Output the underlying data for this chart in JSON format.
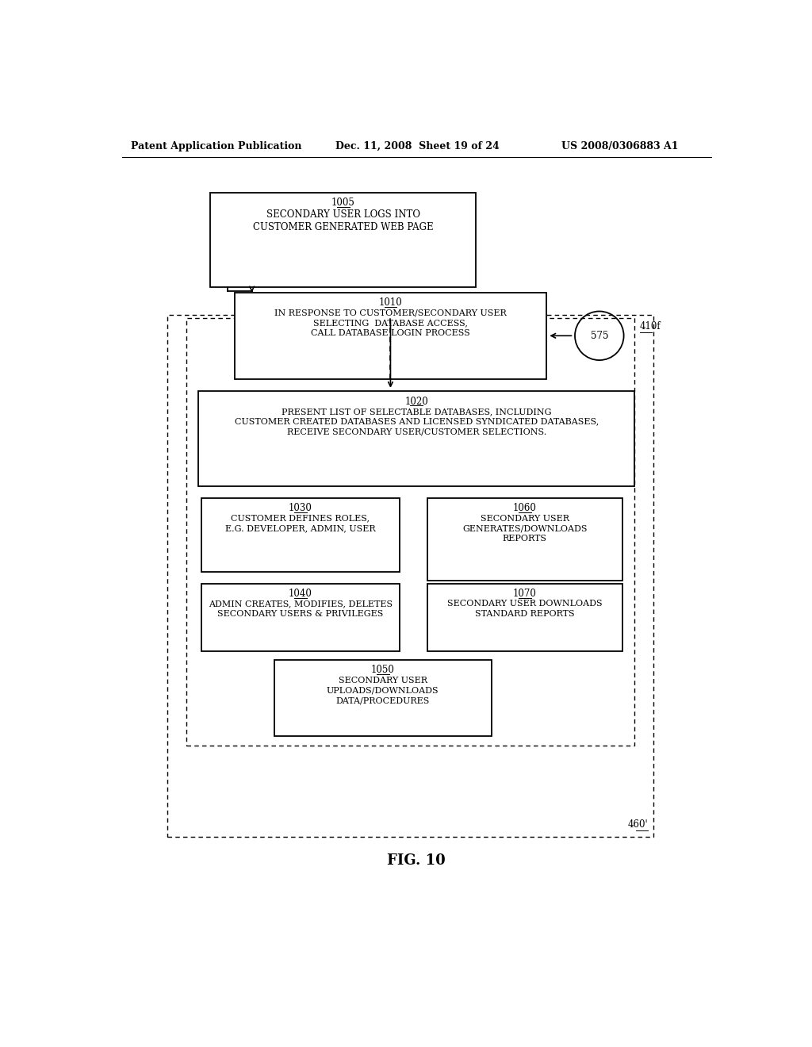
{
  "header_left": "Patent Application Publication",
  "header_mid": "Dec. 11, 2008  Sheet 19 of 24",
  "header_right": "US 2008/0306883 A1",
  "fig_label": "FIG. 10",
  "box_1005_label": "1005",
  "box_1005_text": "SECONDARY USER LOGS INTO\nCUSTOMER GENERATED WEB PAGE",
  "box_1010_label": "1010",
  "box_1010_text": "IN RESPONSE TO CUSTOMER/SECONDARY USER\nSELECTING  DATABASE ACCESS,\nCALL DATABASE LOGIN PROCESS",
  "circle_575": "575",
  "label_410f": "410f",
  "box_1020_label": "1020",
  "box_1020_text": "PRESENT LIST OF SELECTABLE DATABASES, INCLUDING\nCUSTOMER CREATED DATABASES AND LICENSED SYNDICATED DATABASES,\nRECEIVE SECONDARY USER/CUSTOMER SELECTIONS.",
  "box_1030_label": "1030",
  "box_1030_text": "CUSTOMER DEFINES ROLES,\nE.G. DEVELOPER, ADMIN, USER",
  "box_1060_label": "1060",
  "box_1060_text": "SECONDARY USER\nGENERATES/DOWNLOADS\nREPORTS",
  "box_1040_label": "1040",
  "box_1040_text": "ADMIN CREATES, MODIFIES, DELETES\nSECONDARY USERS & PRIVILEGES",
  "box_1070_label": "1070",
  "box_1070_text": "SECONDARY USER DOWNLOADS\nSTANDARD REPORTS",
  "box_1050_label": "1050",
  "box_1050_text": "SECONDARY USER\nUPLOADS/DOWNLOADS\nDATA/PROCEDURES",
  "label_460": "460'",
  "bg_color": "#ffffff",
  "line_color": "#000000",
  "text_color": "#000000",
  "font_size_header": 9,
  "font_size_fig": 13
}
